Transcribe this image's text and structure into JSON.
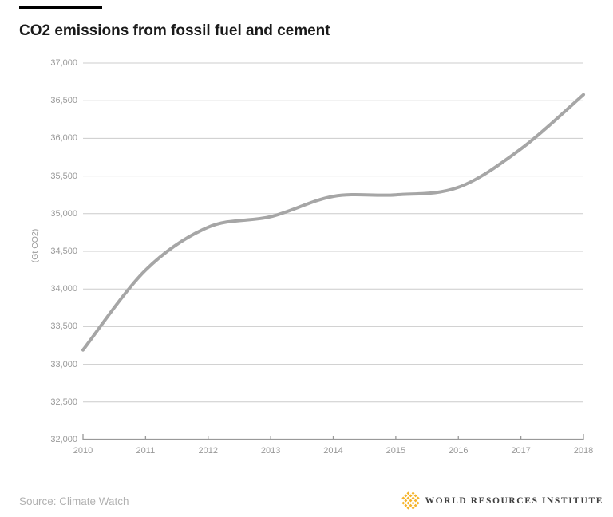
{
  "header": {
    "title": "CO2 emissions from fossil fuel and cement"
  },
  "chart_data": {
    "type": "line",
    "title": "CO2 emissions from fossil fuel and cement",
    "xlabel": "",
    "ylabel": "(Gt CO2)",
    "x": [
      2010,
      2011,
      2012,
      2013,
      2014,
      2015,
      2016,
      2017,
      2018
    ],
    "series": [
      {
        "name": "CO2 emissions from fossil fuel and cement",
        "values": [
          33190,
          34250,
          34820,
          34960,
          35230,
          35250,
          35350,
          35860,
          36580
        ]
      }
    ],
    "ylim": [
      32000,
      37000
    ],
    "ytick_step": 500,
    "ytick_labels": [
      "32,000",
      "32,500",
      "33,000",
      "33,500",
      "34,000",
      "34,500",
      "35,000",
      "35,500",
      "36,000",
      "36,500",
      "37,000"
    ],
    "xtick_labels": [
      "2010",
      "2011",
      "2012",
      "2013",
      "2014",
      "2015",
      "2016",
      "2017",
      "2018"
    ],
    "grid": true,
    "legend_position": "none",
    "line_color": "#a6a6a6",
    "grid_color": "#cccccc",
    "axis_color": "#999999",
    "tick_label_color": "#999999"
  },
  "footer": {
    "source": "Source: Climate Watch",
    "logo_text": "WORLD RESOURCES INSTITUTE",
    "logo_icon_color": "#F5B32B"
  },
  "colors": {
    "title": "#1a1a1a",
    "background": "#ffffff",
    "top_rule": "#000000"
  }
}
